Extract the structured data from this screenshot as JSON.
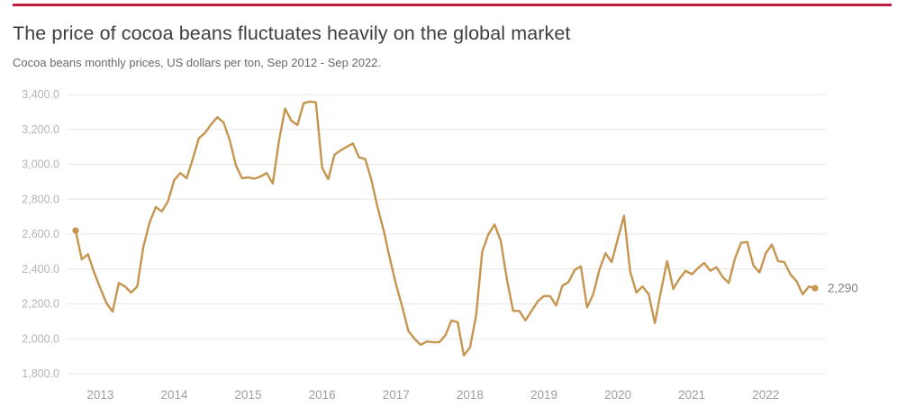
{
  "header": {
    "title": "The price of cocoa beans fluctuates heavily on the global market",
    "subtitle": "Cocoa beans monthly prices, US dollars per ton, Sep 2012 - Sep 2022."
  },
  "colors": {
    "accent_red": "#BE1E3D",
    "line_gold": "#C6954F",
    "grid": "#E7E7E7",
    "y_label": "#B5B5B5",
    "x_label": "#9E9E9E",
    "end_label": "#7F7F7F"
  },
  "chart_data": {
    "type": "line",
    "title": "Cocoa beans monthly prices",
    "ylabel": "US dollars per ton",
    "x_start": "2012-09",
    "x_end": "2022-09",
    "x_tick_labels": [
      "2013",
      "2014",
      "2015",
      "2016",
      "2017",
      "2018",
      "2019",
      "2020",
      "2021",
      "2022"
    ],
    "y_tick_labels": [
      "3,400.0",
      "3,200.0",
      "3,000.0",
      "2,800.0",
      "2,600.0",
      "2,400.0",
      "2,200.0",
      "2,000.0",
      "1,800.0"
    ],
    "y_tick_values": [
      3400,
      3200,
      3000,
      2800,
      2600,
      2400,
      2200,
      2000,
      1800
    ],
    "ylim": [
      1800,
      3400
    ],
    "grid": "horizontal-only",
    "legend_position": "none",
    "end_label": "2,290",
    "values": [
      2620,
      2455,
      2485,
      2380,
      2290,
      2205,
      2155,
      2320,
      2300,
      2265,
      2300,
      2530,
      2665,
      2755,
      2730,
      2790,
      2910,
      2950,
      2920,
      3030,
      3150,
      3180,
      3230,
      3270,
      3240,
      3140,
      2995,
      2920,
      2925,
      2918,
      2930,
      2950,
      2890,
      3135,
      3320,
      3250,
      3225,
      3350,
      3360,
      3355,
      2980,
      2915,
      3055,
      3080,
      3100,
      3120,
      3040,
      3030,
      2910,
      2755,
      2620,
      2460,
      2310,
      2185,
      2045,
      2000,
      1965,
      1985,
      1980,
      1980,
      2020,
      2105,
      2095,
      1905,
      1950,
      2135,
      2500,
      2600,
      2655,
      2560,
      2340,
      2160,
      2160,
      2105,
      2160,
      2215,
      2245,
      2245,
      2190,
      2305,
      2325,
      2395,
      2415,
      2180,
      2255,
      2395,
      2490,
      2440,
      2575,
      2705,
      2385,
      2265,
      2300,
      2255,
      2090,
      2275,
      2445,
      2285,
      2345,
      2390,
      2370,
      2405,
      2435,
      2390,
      2410,
      2355,
      2320,
      2460,
      2550,
      2555,
      2420,
      2380,
      2490,
      2540,
      2445,
      2440,
      2370,
      2330,
      2255,
      2300,
      2290
    ]
  }
}
